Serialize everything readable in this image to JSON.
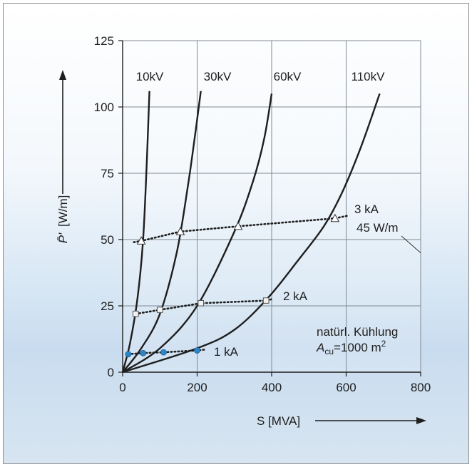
{
  "chart_data": {
    "type": "line",
    "xlabel": "S [MVA]",
    "ylabel": "P̄′ [W/m]",
    "xlim": [
      0,
      800
    ],
    "ylim": [
      0,
      125
    ],
    "xticks": [
      "0",
      "200",
      "400",
      "600",
      "800"
    ],
    "yticks": [
      "0",
      "25",
      "50",
      "75",
      "100",
      "125"
    ],
    "grid": true,
    "series": [
      {
        "name": "10kV",
        "points": [
          [
            0,
            0
          ],
          [
            20,
            11
          ],
          [
            40,
            28
          ],
          [
            55,
            50
          ],
          [
            65,
            80
          ],
          [
            72,
            106
          ]
        ]
      },
      {
        "name": "30kV",
        "points": [
          [
            0,
            0
          ],
          [
            50,
            9
          ],
          [
            100,
            22
          ],
          [
            145,
            45
          ],
          [
            175,
            70
          ],
          [
            195,
            90
          ],
          [
            210,
            106
          ]
        ]
      },
      {
        "name": "60kV",
        "points": [
          [
            0,
            0
          ],
          [
            100,
            9
          ],
          [
            200,
            25
          ],
          [
            300,
            53
          ],
          [
            350,
            72
          ],
          [
            380,
            88
          ],
          [
            400,
            105
          ]
        ]
      },
      {
        "name": "110kV",
        "points": [
          [
            0,
            0
          ],
          [
            200,
            9
          ],
          [
            300,
            16
          ],
          [
            390,
            28
          ],
          [
            470,
            42
          ],
          [
            540,
            55
          ],
          [
            590,
            68
          ],
          [
            640,
            85
          ],
          [
            690,
            105
          ]
        ]
      }
    ],
    "current_lines": [
      {
        "name": "1 kA",
        "marker": "circle",
        "color": "#2a86c8",
        "points": [
          [
            15,
            6.8
          ],
          [
            55,
            7.2
          ],
          [
            110,
            7.5
          ],
          [
            200,
            8.2
          ]
        ],
        "end": [
          220,
          8.5
        ]
      },
      {
        "name": "2 kA",
        "marker": "square",
        "color": "#f2f2f2",
        "points": [
          [
            35,
            22
          ],
          [
            100,
            23.5
          ],
          [
            210,
            26
          ],
          [
            385,
            27
          ]
        ],
        "end": [
          400,
          27.5
        ]
      },
      {
        "name": "3 kA",
        "marker": "triangle",
        "color": "#ffffff",
        "points": [
          [
            50,
            49.5
          ],
          [
            155,
            53
          ],
          [
            310,
            55
          ],
          [
            570,
            58
          ]
        ],
        "start": [
          30,
          49
        ],
        "end": [
          605,
          59
        ]
      }
    ],
    "annotations": [
      {
        "text": "45 W/m",
        "value": 45
      },
      {
        "text": "natürl. Kühlung"
      },
      {
        "text": "A_cu=1000 m²"
      }
    ]
  },
  "labels": {
    "ylabel_main": "P̄′",
    "ylabel_unit": "[W/m]",
    "xlabel": "S [MVA]",
    "ann_cooling": "natürl. Kühlung",
    "ann_area_symbol": "A",
    "ann_area_sub": "cu",
    "ann_area_value": "=1000 m",
    "ann_area_sup": "2",
    "ann_45": "45 W/m"
  }
}
